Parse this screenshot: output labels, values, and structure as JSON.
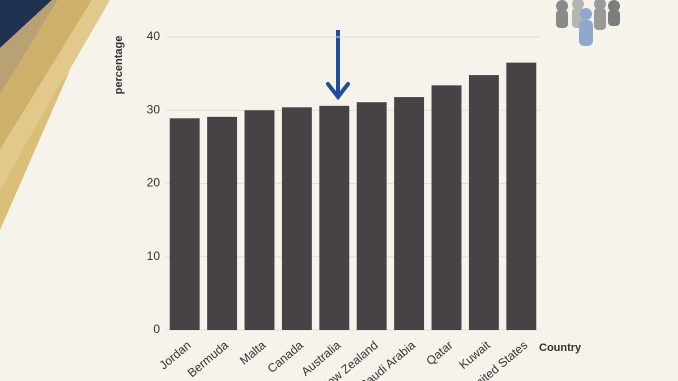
{
  "chart_data": {
    "type": "bar",
    "x_label": "Country",
    "y_label": "percentage",
    "categories": [
      "Jordan",
      "Bermuda",
      "Malta",
      "Canada",
      "Australia",
      "New Zealand",
      "Saudi Arabia",
      "Qatar",
      "Kuwait",
      "United States"
    ],
    "values": [
      28.9,
      29.1,
      30.0,
      30.4,
      30.6,
      31.1,
      31.8,
      33.4,
      34.8,
      36.5
    ],
    "color": "#474246",
    "ylim": [
      0,
      40
    ],
    "yticks": [
      0,
      10,
      20,
      30,
      40
    ],
    "grid": true
  }
}
